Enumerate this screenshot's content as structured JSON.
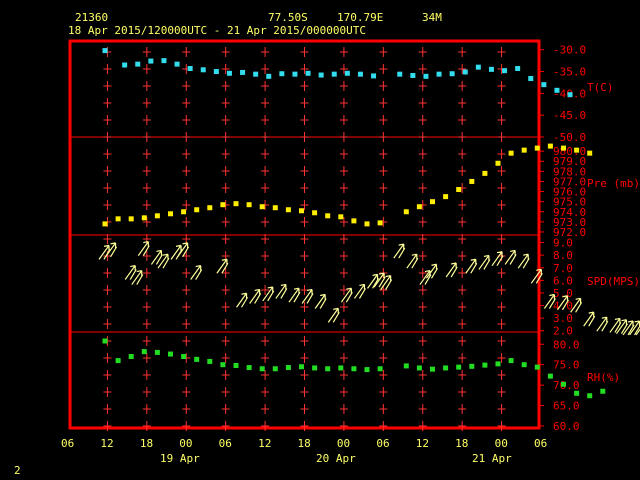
{
  "header": {
    "station": "21360",
    "lat": "77.50S",
    "lon": "170.79E",
    "elev": "34M",
    "period": "18 Apr 2015/120000UTC - 21 Apr 2015/000000UTC"
  },
  "footer": {
    "page": "2"
  },
  "colors": {
    "frame": "#ff0000",
    "grid": "#ff3333",
    "text_axis": "#ffff66",
    "temp": "#33ddee",
    "pres": "#ffee00",
    "wind": "#ffff99",
    "rh": "#22dd22"
  },
  "chart_data": [
    {
      "type": "scatter",
      "name": "T(C)",
      "ylabel": "T(C)",
      "ticks": [
        "-30.0",
        "-35.0",
        "-40.0",
        "-45.0",
        "-50.0"
      ],
      "ylim": [
        -50,
        -28
      ],
      "x": [
        0,
        3,
        5,
        7,
        9,
        11,
        13,
        15,
        17,
        19,
        21,
        23,
        25,
        27,
        29,
        31,
        33,
        35,
        37,
        39,
        41,
        43,
        45,
        47,
        49,
        51,
        53,
        55,
        57,
        59,
        61,
        63,
        65,
        67,
        69,
        71
      ],
      "values": [
        -30.2,
        -33.5,
        -33.3,
        -32.6,
        -32.5,
        -33.3,
        -34.3,
        -34.6,
        -35.0,
        -35.4,
        -35.2,
        -35.6,
        -36.1,
        -35.5,
        -35.6,
        -35.4,
        -35.8,
        -35.6,
        -35.4,
        -35.6,
        -36.0,
        null,
        -35.6,
        -35.9,
        -36.1,
        -35.6,
        -35.5,
        -35.1,
        -34.0,
        -34.5,
        -34.8,
        -34.3,
        -36.6,
        -38.0,
        -39.3,
        -40.3
      ],
      "grid": true
    },
    {
      "type": "scatter",
      "name": "Pre (mb)",
      "ylabel": "Pre (mb)",
      "ticks": [
        "980.0",
        "979.0",
        "978.0",
        "977.0",
        "976.0",
        "975.0",
        "974.0",
        "973.0",
        "972.0"
      ],
      "ylim": [
        971.7,
        981.4
      ],
      "x": [
        0,
        2,
        4,
        6,
        8,
        10,
        12,
        14,
        16,
        18,
        20,
        22,
        24,
        26,
        28,
        30,
        32,
        34,
        36,
        38,
        40,
        42,
        46,
        48,
        50,
        52,
        54,
        56,
        58,
        60,
        62,
        64,
        66,
        68,
        70,
        72,
        74
      ],
      "values": [
        972.8,
        973.3,
        973.3,
        973.4,
        973.6,
        973.8,
        974.0,
        974.2,
        974.4,
        974.7,
        974.8,
        974.7,
        974.5,
        974.4,
        974.2,
        974.1,
        973.9,
        973.6,
        973.5,
        973.1,
        972.8,
        972.9,
        974.0,
        974.5,
        975.0,
        975.5,
        976.2,
        977.0,
        977.8,
        978.8,
        979.8,
        980.1,
        980.3,
        980.5,
        980.3,
        980.1,
        979.8
      ],
      "grid": true
    },
    {
      "type": "barbs",
      "name": "SPD(MPS)",
      "ylabel": "SPD(MPS)",
      "ticks": [
        "9.0",
        "8.0",
        "7.0",
        "6.0",
        "5.0",
        "4.0",
        "3.0",
        "2.0"
      ],
      "ylim": [
        1.9,
        9.6
      ],
      "x": [
        0,
        1,
        4,
        5,
        6,
        8,
        9,
        11,
        12,
        14,
        18,
        21,
        23,
        25,
        27,
        29,
        31,
        33,
        35,
        37,
        39,
        41,
        42,
        43,
        45,
        47,
        49,
        50,
        53,
        56,
        58,
        60,
        62,
        64,
        66,
        68,
        70,
        72,
        74,
        76,
        78,
        79,
        80,
        81,
        82
      ],
      "values": [
        8.3,
        8.5,
        6.7,
        6.3,
        8.6,
        7.9,
        7.6,
        8.3,
        8.5,
        6.7,
        7.2,
        4.5,
        4.8,
        5.0,
        5.2,
        4.9,
        4.8,
        4.4,
        3.3,
        4.9,
        5.2,
        6.0,
        6.1,
        5.9,
        8.4,
        7.6,
        6.3,
        6.8,
        6.9,
        7.2,
        7.5,
        7.8,
        7.9,
        7.6,
        6.4,
        4.4,
        4.3,
        4.1,
        3.0,
        2.6,
        2.5,
        2.4,
        2.3,
        2.3,
        2.3
      ],
      "grid": true
    },
    {
      "type": "scatter",
      "name": "RH(%)",
      "ylabel": "RH(%)",
      "ticks": [
        "80.0",
        "75.0",
        "70.0",
        "65.0",
        "60.0"
      ],
      "ylim": [
        59.5,
        83
      ],
      "x": [
        0,
        2,
        4,
        6,
        8,
        10,
        12,
        14,
        16,
        18,
        20,
        22,
        24,
        26,
        28,
        30,
        32,
        34,
        36,
        38,
        40,
        42,
        46,
        48,
        50,
        52,
        54,
        56,
        58,
        60,
        62,
        64,
        66,
        68,
        70,
        72,
        74,
        76
      ],
      "values": [
        80.8,
        76.0,
        77.0,
        78.2,
        78.0,
        77.6,
        77.0,
        76.3,
        75.8,
        75.0,
        74.8,
        74.3,
        74.0,
        74.0,
        74.3,
        74.5,
        74.2,
        74.0,
        74.2,
        74.0,
        73.8,
        74.0,
        74.7,
        74.2,
        73.9,
        74.2,
        74.4,
        74.6,
        74.9,
        75.2,
        76.0,
        75.0,
        74.4,
        72.2,
        70.2,
        68.0,
        67.4,
        68.5
      ],
      "grid": true
    },
    {
      "type": "time_axis",
      "x_ticks": [
        "06",
        "12",
        "18",
        "00",
        "06",
        "12",
        "18",
        "00",
        "06",
        "12",
        "18",
        "00",
        "06"
      ],
      "date_labels": [
        "19 Apr",
        "20 Apr",
        "21 Apr"
      ]
    }
  ]
}
